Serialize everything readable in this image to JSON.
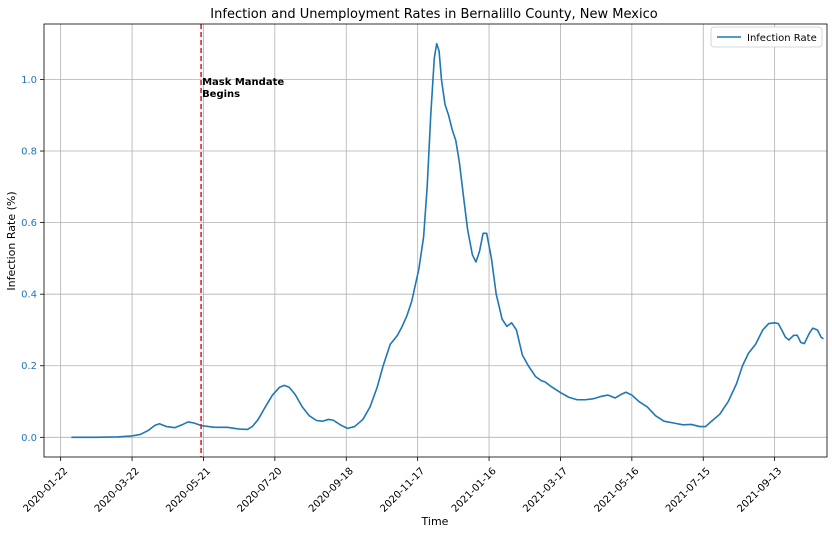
{
  "chart_data": {
    "type": "line",
    "title": "Infection and Unemployment Rates in Bernalillo County, New Mexico",
    "xlabel": "Time",
    "ylabel": "Infection Rate (%)",
    "ylim": [
      -0.055,
      1.155
    ],
    "xlim": [
      "2020-01-08",
      "2021-10-27"
    ],
    "grid": true,
    "legend_position": "top-right",
    "colors": {
      "series": "#1f77b4",
      "mandate_line": "#d62728",
      "ytick": "#1f77b4",
      "grid": "#b0b0b0"
    },
    "x_ticks": [
      "2020-01-22",
      "2020-03-22",
      "2020-05-21",
      "2020-07-20",
      "2020-09-18",
      "2020-11-17",
      "2021-01-16",
      "2021-03-17",
      "2021-05-16",
      "2021-07-15",
      "2021-09-13"
    ],
    "y_ticks": [
      "0.0",
      "0.2",
      "0.4",
      "0.6",
      "0.8",
      "1.0"
    ],
    "annotation": {
      "date": "2020-05-19",
      "lines": [
        "Mask Mandate",
        "Begins"
      ]
    },
    "series": [
      {
        "name": "Infection Rate",
        "points": [
          [
            "2020-01-31",
            0.0
          ],
          [
            "2020-02-20",
            0.0
          ],
          [
            "2020-03-10",
            0.001
          ],
          [
            "2020-03-22",
            0.004
          ],
          [
            "2020-03-29",
            0.008
          ],
          [
            "2020-04-05",
            0.02
          ],
          [
            "2020-04-10",
            0.033
          ],
          [
            "2020-04-14",
            0.038
          ],
          [
            "2020-04-20",
            0.03
          ],
          [
            "2020-04-27",
            0.027
          ],
          [
            "2020-05-03",
            0.035
          ],
          [
            "2020-05-08",
            0.043
          ],
          [
            "2020-05-13",
            0.04
          ],
          [
            "2020-05-19",
            0.033
          ],
          [
            "2020-05-30",
            0.028
          ],
          [
            "2020-06-10",
            0.028
          ],
          [
            "2020-06-20",
            0.023
          ],
          [
            "2020-06-27",
            0.022
          ],
          [
            "2020-07-01",
            0.03
          ],
          [
            "2020-07-06",
            0.05
          ],
          [
            "2020-07-12",
            0.085
          ],
          [
            "2020-07-18",
            0.118
          ],
          [
            "2020-07-24",
            0.14
          ],
          [
            "2020-07-28",
            0.145
          ],
          [
            "2020-08-01",
            0.14
          ],
          [
            "2020-08-06",
            0.12
          ],
          [
            "2020-08-12",
            0.085
          ],
          [
            "2020-08-18",
            0.06
          ],
          [
            "2020-08-24",
            0.047
          ],
          [
            "2020-08-29",
            0.045
          ],
          [
            "2020-09-03",
            0.05
          ],
          [
            "2020-09-07",
            0.048
          ],
          [
            "2020-09-13",
            0.035
          ],
          [
            "2020-09-19",
            0.025
          ],
          [
            "2020-09-25",
            0.03
          ],
          [
            "2020-10-02",
            0.05
          ],
          [
            "2020-10-08",
            0.085
          ],
          [
            "2020-10-14",
            0.14
          ],
          [
            "2020-10-19",
            0.2
          ],
          [
            "2020-10-25",
            0.26
          ],
          [
            "2020-10-31",
            0.285
          ],
          [
            "2020-11-04",
            0.31
          ],
          [
            "2020-11-08",
            0.34
          ],
          [
            "2020-11-12",
            0.38
          ],
          [
            "2020-11-18",
            0.47
          ],
          [
            "2020-11-22",
            0.56
          ],
          [
            "2020-11-25",
            0.7
          ],
          [
            "2020-11-28",
            0.9
          ],
          [
            "2020-12-01",
            1.06
          ],
          [
            "2020-12-03",
            1.1
          ],
          [
            "2020-12-05",
            1.08
          ],
          [
            "2020-12-07",
            1.0
          ],
          [
            "2020-12-10",
            0.93
          ],
          [
            "2020-12-13",
            0.9
          ],
          [
            "2020-12-16",
            0.86
          ],
          [
            "2020-12-19",
            0.83
          ],
          [
            "2020-12-22",
            0.77
          ],
          [
            "2020-12-26",
            0.66
          ],
          [
            "2020-12-29",
            0.58
          ],
          [
            "2021-01-02",
            0.51
          ],
          [
            "2021-01-05",
            0.49
          ],
          [
            "2021-01-08",
            0.52
          ],
          [
            "2021-01-11",
            0.57
          ],
          [
            "2021-01-14",
            0.57
          ],
          [
            "2021-01-18",
            0.5
          ],
          [
            "2021-01-22",
            0.4
          ],
          [
            "2021-01-27",
            0.33
          ],
          [
            "2021-01-31",
            0.31
          ],
          [
            "2021-02-04",
            0.32
          ],
          [
            "2021-02-08",
            0.3
          ],
          [
            "2021-02-13",
            0.23
          ],
          [
            "2021-02-18",
            0.2
          ],
          [
            "2021-02-24",
            0.17
          ],
          [
            "2021-03-01",
            0.158
          ],
          [
            "2021-03-04",
            0.155
          ],
          [
            "2021-03-10",
            0.14
          ],
          [
            "2021-03-17",
            0.125
          ],
          [
            "2021-03-24",
            0.112
          ],
          [
            "2021-03-31",
            0.105
          ],
          [
            "2021-04-07",
            0.105
          ],
          [
            "2021-04-14",
            0.108
          ],
          [
            "2021-04-21",
            0.115
          ],
          [
            "2021-04-26",
            0.118
          ],
          [
            "2021-05-02",
            0.11
          ],
          [
            "2021-05-07",
            0.12
          ],
          [
            "2021-05-11",
            0.126
          ],
          [
            "2021-05-16",
            0.118
          ],
          [
            "2021-05-22",
            0.1
          ],
          [
            "2021-05-29",
            0.085
          ],
          [
            "2021-06-05",
            0.06
          ],
          [
            "2021-06-12",
            0.045
          ],
          [
            "2021-06-20",
            0.04
          ],
          [
            "2021-06-28",
            0.035
          ],
          [
            "2021-07-05",
            0.036
          ],
          [
            "2021-07-12",
            0.03
          ],
          [
            "2021-07-17",
            0.03
          ],
          [
            "2021-07-22",
            0.045
          ],
          [
            "2021-07-29",
            0.065
          ],
          [
            "2021-08-05",
            0.1
          ],
          [
            "2021-08-12",
            0.15
          ],
          [
            "2021-08-17",
            0.2
          ],
          [
            "2021-08-22",
            0.235
          ],
          [
            "2021-08-28",
            0.26
          ],
          [
            "2021-09-03",
            0.3
          ],
          [
            "2021-09-08",
            0.318
          ],
          [
            "2021-09-13",
            0.32
          ],
          [
            "2021-09-16",
            0.318
          ],
          [
            "2021-09-19",
            0.3
          ],
          [
            "2021-09-22",
            0.28
          ],
          [
            "2021-09-25",
            0.272
          ],
          [
            "2021-09-29",
            0.285
          ],
          [
            "2021-10-02",
            0.285
          ],
          [
            "2021-10-05",
            0.265
          ],
          [
            "2021-10-08",
            0.262
          ],
          [
            "2021-10-12",
            0.29
          ],
          [
            "2021-10-15",
            0.305
          ],
          [
            "2021-10-19",
            0.3
          ],
          [
            "2021-10-22",
            0.28
          ],
          [
            "2021-10-24",
            0.275
          ]
        ]
      }
    ]
  }
}
